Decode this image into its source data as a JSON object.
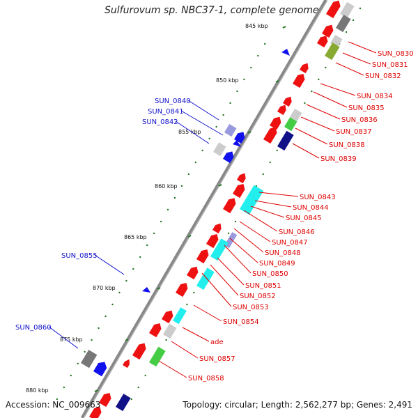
{
  "title": "Sulfurovum sp. NBC37-1, complete genome",
  "accession": "Accession: NC_009663",
  "topology": "Topology: circular; Length: 2,562,277 bp; Genes: 2,491",
  "colors": {
    "backbone": "#888888",
    "tick": "#227722",
    "red_gene": "#ee1111",
    "blue_gene": "#1111ee",
    "cyan_gene": "#22eeee",
    "green_gene": "#44cc44",
    "navy_gene": "#111188",
    "grey_gene": "#777777",
    "light_grey_gene": "#cccccc",
    "olive_gene": "#88aa33",
    "lavender_gene": "#9999dd",
    "label_red": "#dd0000",
    "label_blue": "#1111cc"
  },
  "scale_ticks": [
    "845 kbp",
    "850 kbp",
    "855 kbp",
    "860 kbp",
    "865 kbp",
    "870 kbp",
    "875 kbp",
    "880 kbp"
  ],
  "right_labels": [
    "SUN_0830",
    "SUN_0831",
    "SUN_0832",
    "SUN_0834",
    "SUN_0835",
    "SUN_0836",
    "SUN_0837",
    "SUN_0838",
    "SUN_0839",
    "SUN_0843",
    "SUN_0844",
    "SUN_0845",
    "SUN_0846",
    "SUN_0847",
    "SUN_0848",
    "SUN_0849",
    "SUN_0850",
    "SUN_0851",
    "SUN_0852",
    "SUN_0853",
    "SUN_0854",
    "ade",
    "SUN_0857",
    "SUN_0858"
  ],
  "left_labels": [
    "SUN_0840",
    "SUN_0841",
    "SUN_0842",
    "SUN_0855",
    "SUN_0860"
  ]
}
